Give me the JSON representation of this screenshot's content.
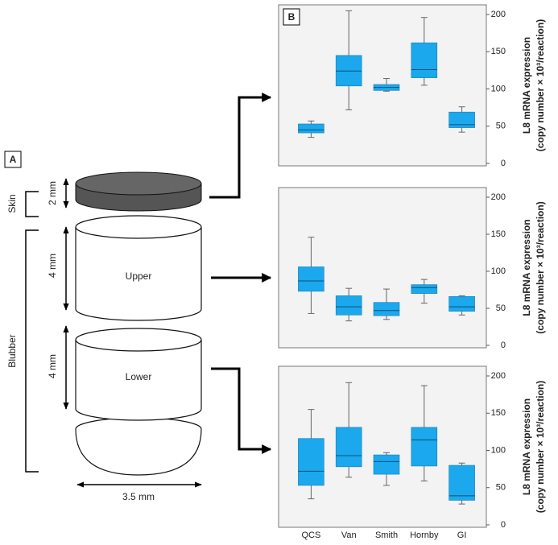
{
  "diagram": {
    "panel_label": "A",
    "skin_label": "Skin",
    "skin_thickness": "2 mm",
    "blubber_label": "Blubber",
    "upper_thickness": "4 mm",
    "upper_label": "Upper",
    "lower_thickness": "4 mm",
    "lower_label": "Lower",
    "width": "3.5 mm"
  },
  "chart_data": [
    {
      "type": "box",
      "panel_label": "B",
      "y_label": [
        "L8 mRNA expression",
        "(copy number × 10³/reaction)"
      ],
      "categories": [
        null,
        null,
        null,
        null,
        null
      ],
      "color": "#1ba8ec",
      "low": [
        35,
        72,
        97,
        105,
        42
      ],
      "q1": [
        41,
        104,
        98,
        115,
        48
      ],
      "median": [
        45,
        124,
        102,
        126,
        52
      ],
      "q3": [
        53,
        145,
        106,
        162,
        69
      ],
      "high": [
        57,
        205,
        114,
        196,
        76
      ],
      "ylim": [
        0,
        200
      ],
      "yticks": [
        0,
        50,
        100,
        150,
        200
      ]
    },
    {
      "type": "box",
      "y_label": [
        "L8 mRNA expression",
        "(copy number × 10³/reaction)"
      ],
      "categories": [
        null,
        null,
        null,
        null,
        null
      ],
      "color": "#1ba8ec",
      "low": [
        43,
        33,
        35,
        57,
        41
      ],
      "q1": [
        73,
        41,
        40,
        70,
        46
      ],
      "median": [
        87,
        52,
        47,
        78,
        52
      ],
      "q3": [
        106,
        67,
        58,
        82,
        66
      ],
      "high": [
        146,
        77,
        76,
        89,
        67
      ],
      "ylim": [
        0,
        200
      ],
      "yticks": [
        0,
        50,
        100,
        150,
        200
      ]
    },
    {
      "type": "box",
      "y_label": [
        "L8 mRNA expression",
        "(copy number × 10³/reaction)"
      ],
      "categories": [
        "QCS",
        "Van",
        "Smith",
        "Hornby",
        "GI"
      ],
      "color": "#1ba8ec",
      "low": [
        35,
        64,
        53,
        59,
        28
      ],
      "q1": [
        53,
        78,
        68,
        79,
        33
      ],
      "median": [
        72,
        93,
        85,
        114,
        39
      ],
      "q3": [
        116,
        131,
        94,
        131,
        80
      ],
      "high": [
        155,
        191,
        97,
        187,
        83
      ],
      "ylim": [
        0,
        200
      ],
      "yticks": [
        0,
        50,
        100,
        150,
        200
      ]
    }
  ]
}
